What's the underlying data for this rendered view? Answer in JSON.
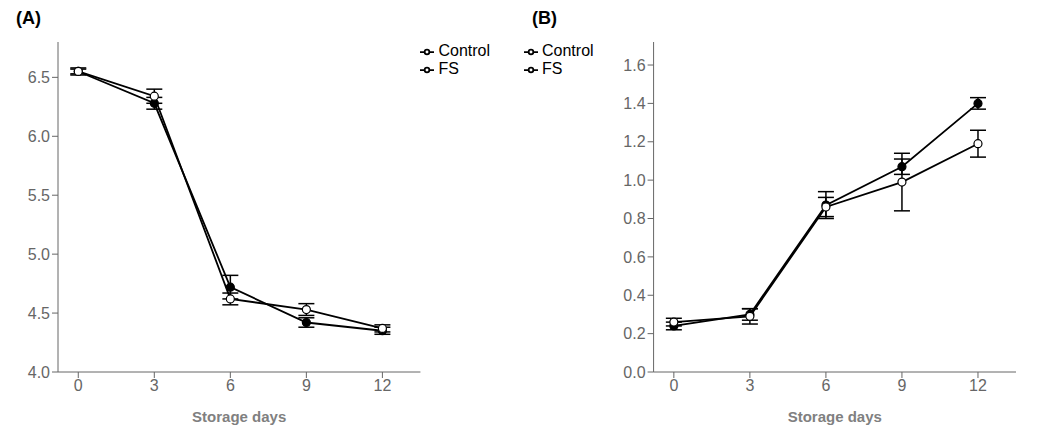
{
  "chart_data": [
    {
      "type": "line",
      "title": "(A)",
      "xlabel": "Storage days",
      "x": [
        0,
        3,
        6,
        9,
        12
      ],
      "xlim": [
        -0.8,
        13.5
      ],
      "xticks": [
        0,
        3,
        6,
        9,
        12
      ],
      "ylim": [
        4.0,
        6.8
      ],
      "yticks": [
        {
          "value": 4.0,
          "label": "4.0"
        },
        4.5,
        {
          "value": 5.0,
          "label": "5.0"
        },
        5.5,
        {
          "value": 6.0,
          "label": "6.0"
        },
        6.5
      ],
      "grid": false,
      "legend": "upper right",
      "series": [
        {
          "name": "Control",
          "color": "#000000",
          "marker": "filled",
          "values": [
            6.55,
            6.28,
            4.72,
            4.42,
            4.35
          ],
          "errors": [
            0.03,
            0.05,
            0.1,
            0.04,
            0.03
          ]
        },
        {
          "name": "FS",
          "color": "#000000",
          "marker": "open",
          "values": [
            6.55,
            6.34,
            4.62,
            4.53,
            4.37
          ],
          "errors": [
            0.02,
            0.06,
            0.05,
            0.05,
            0.03
          ]
        }
      ]
    },
    {
      "type": "line",
      "title": "(B)",
      "xlabel": "Storage days",
      "x": [
        0,
        3,
        6,
        9,
        12
      ],
      "xlim": [
        -0.8,
        13.5
      ],
      "xticks": [
        0,
        3,
        6,
        9,
        12
      ],
      "ylim": [
        0.0,
        1.72
      ],
      "yticks": [
        {
          "value": 0.0,
          "label": "0.0"
        },
        0.2,
        0.4,
        0.6,
        0.8,
        {
          "value": 1.0,
          "label": "1.0"
        },
        1.2,
        1.4,
        1.6
      ],
      "grid": false,
      "legend": "upper left",
      "series": [
        {
          "name": "Control",
          "color": "#000000",
          "marker": "filled",
          "values": [
            0.24,
            0.3,
            0.87,
            1.07,
            1.4
          ],
          "errors": [
            0.02,
            0.03,
            0.07,
            0.04,
            0.03
          ]
        },
        {
          "name": "FS",
          "color": "#000000",
          "marker": "open",
          "values": [
            0.26,
            0.29,
            0.86,
            0.99,
            1.19
          ],
          "errors": [
            0.02,
            0.04,
            0.05,
            0.15,
            0.07
          ]
        }
      ]
    }
  ]
}
